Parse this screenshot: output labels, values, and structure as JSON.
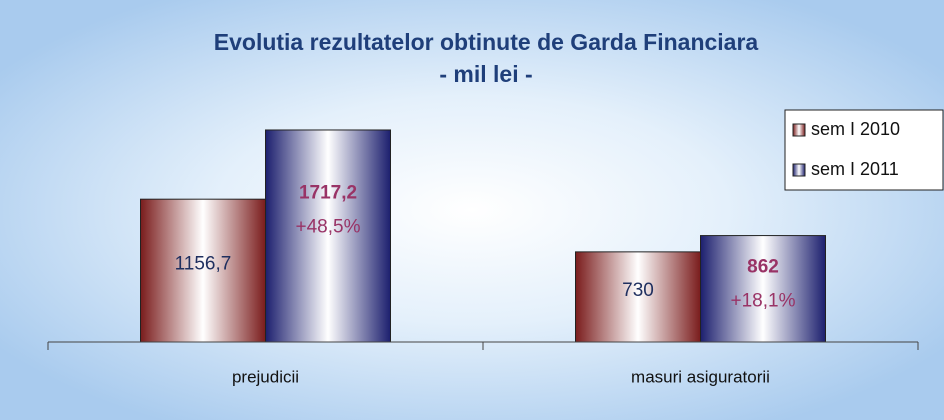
{
  "chart_data": {
    "type": "bar",
    "title": "Evolutia rezultatelor obtinute de Garda Financiara",
    "subtitle": "- mil lei -",
    "categories": [
      "prejudicii",
      "masuri asiguratorii"
    ],
    "series": [
      {
        "name": "sem I 2010",
        "color": "#7a1c1c",
        "values": [
          1156.7,
          730
        ],
        "value_labels": [
          "1156,7",
          "730"
        ]
      },
      {
        "name": "sem I 2011",
        "color": "#1c1f6e",
        "values": [
          1717.2,
          862
        ],
        "value_labels": [
          "1717,2",
          "862"
        ]
      }
    ],
    "annotations": [
      "+48,5%",
      "+18,1%"
    ],
    "ylim": [
      0,
      1960
    ],
    "legend": "right"
  }
}
